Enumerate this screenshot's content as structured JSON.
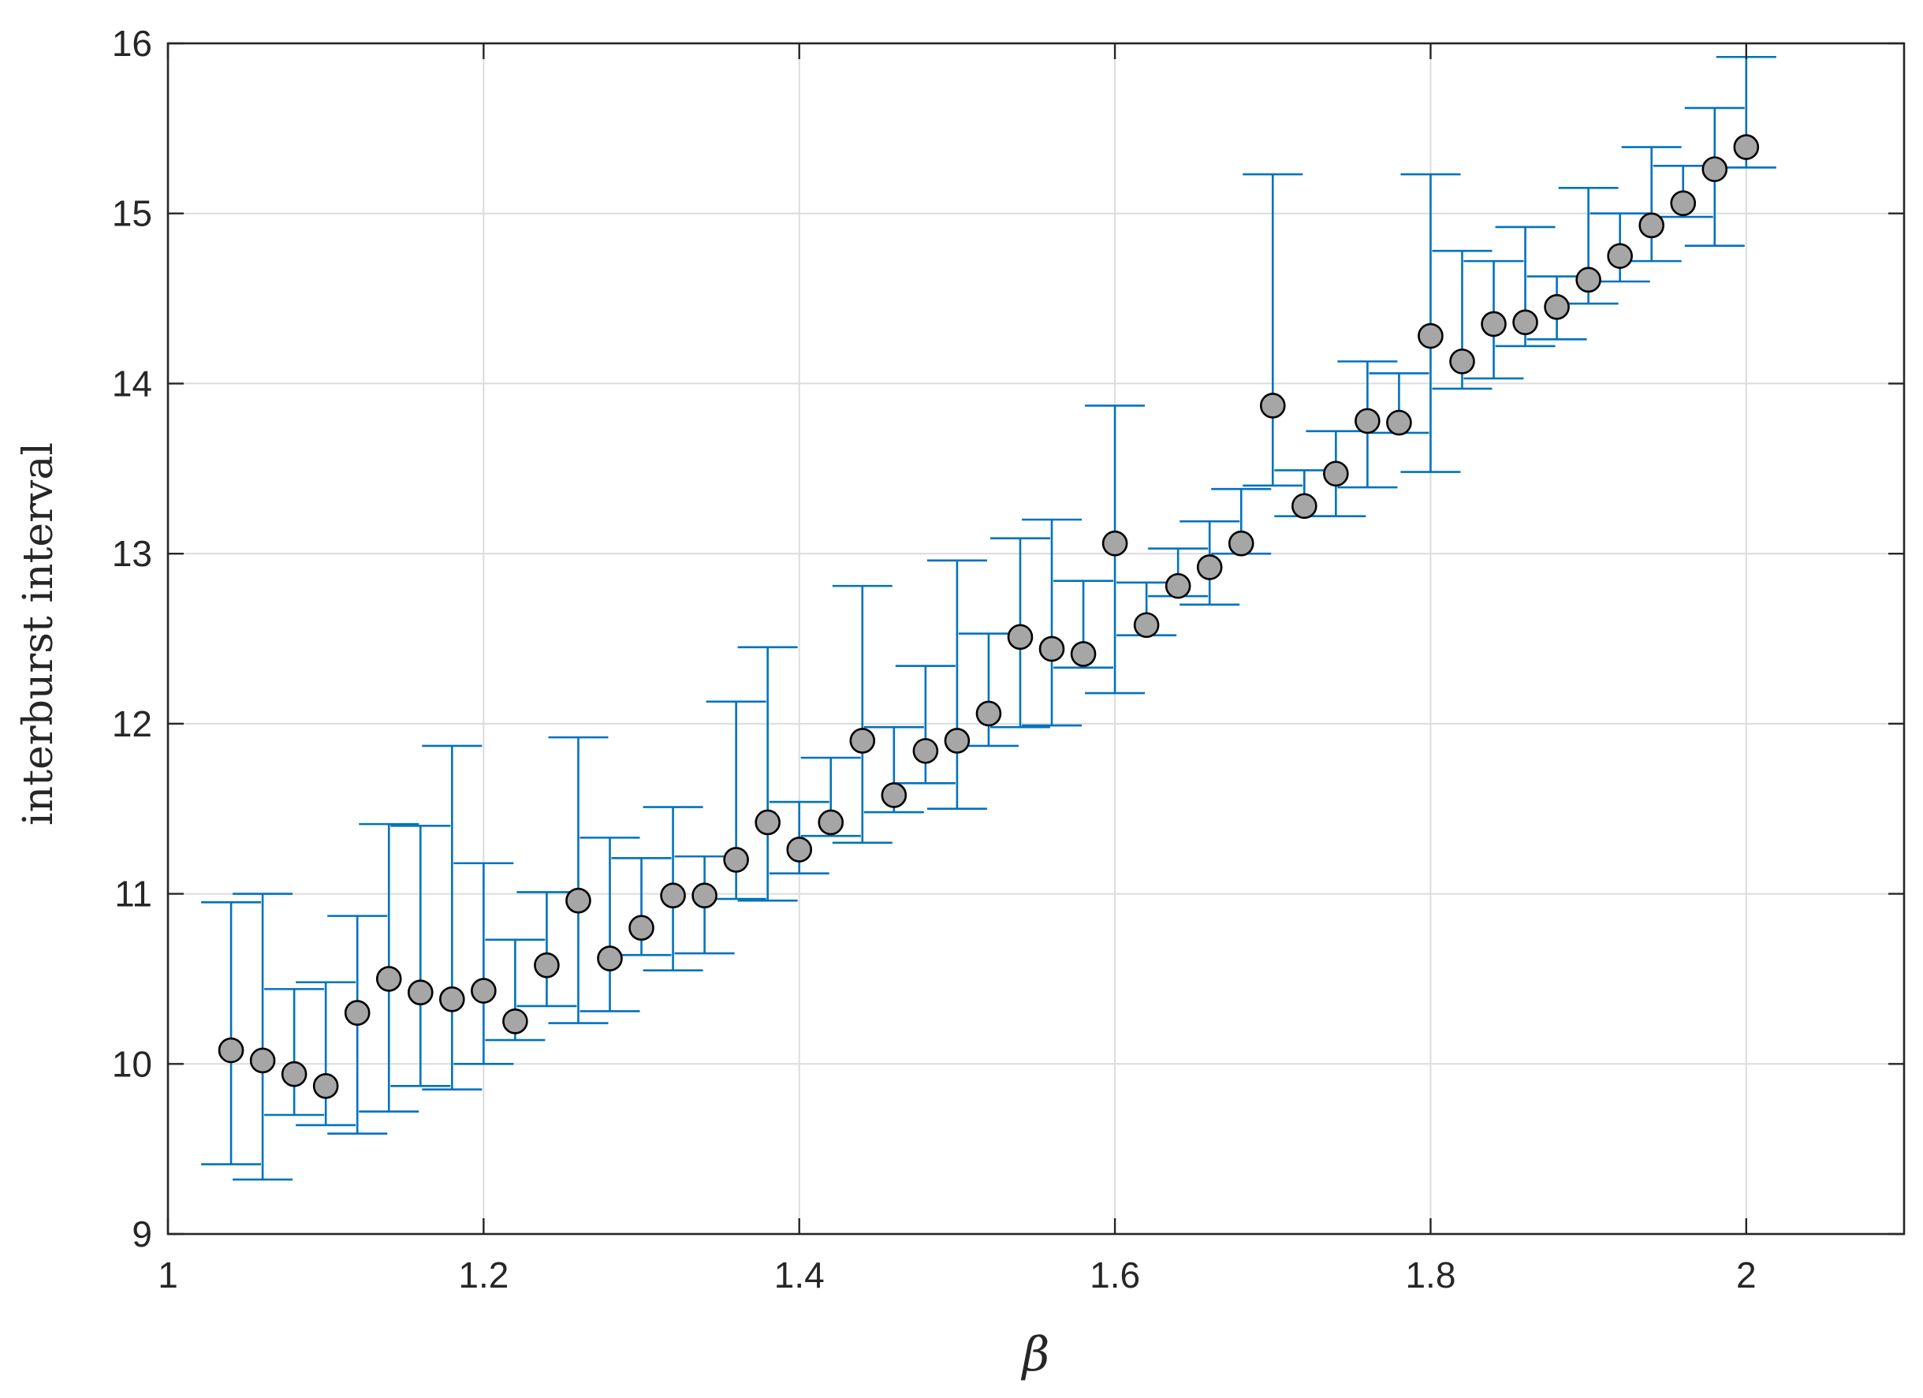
{
  "chart_data": {
    "type": "scatter",
    "title": "",
    "xlabel": "β",
    "ylabel": "interburst interval",
    "xlim": [
      1,
      2.1
    ],
    "ylim": [
      9,
      16
    ],
    "xticks": [
      1,
      1.2,
      1.4,
      1.6,
      1.8,
      2
    ],
    "xtick_labels": [
      "1",
      "1.2",
      "1.4",
      "1.6",
      "1.8",
      "2"
    ],
    "yticks": [
      9,
      10,
      11,
      12,
      13,
      14,
      15,
      16
    ],
    "ytick_labels": [
      "9",
      "10",
      "11",
      "12",
      "13",
      "14",
      "15",
      "16"
    ],
    "grid": true,
    "colors": {
      "errorbar": "#0072BD",
      "marker_fill": "#A6A6A6",
      "marker_edge": "#000000",
      "grid": "#DCDCDC",
      "axis": "#262626"
    },
    "series": [
      {
        "x": [
          1.04,
          1.06,
          1.08,
          1.1,
          1.12,
          1.14,
          1.16,
          1.18,
          1.2,
          1.22,
          1.24,
          1.26,
          1.28,
          1.3,
          1.32,
          1.34,
          1.36,
          1.38,
          1.4,
          1.42,
          1.44,
          1.46,
          1.48,
          1.5,
          1.52,
          1.54,
          1.56,
          1.58,
          1.6,
          1.62,
          1.64,
          1.66,
          1.68,
          1.7,
          1.72,
          1.74,
          1.76,
          1.78,
          1.8,
          1.82,
          1.84,
          1.86,
          1.88,
          1.9,
          1.92,
          1.94,
          1.96,
          1.98,
          2.0
        ],
        "y": [
          10.08,
          10.02,
          9.94,
          9.87,
          10.3,
          10.5,
          10.42,
          10.38,
          10.43,
          10.25,
          10.58,
          10.96,
          10.62,
          10.8,
          10.99,
          10.99,
          11.2,
          11.42,
          11.26,
          11.42,
          11.9,
          11.58,
          11.84,
          11.9,
          12.06,
          12.51,
          12.44,
          12.41,
          13.06,
          12.58,
          12.81,
          12.92,
          13.06,
          13.87,
          13.28,
          13.47,
          13.78,
          13.77,
          14.28,
          14.13,
          14.35,
          14.36,
          14.45,
          14.61,
          14.75,
          14.93,
          15.06,
          15.26,
          15.39
        ],
        "ylow": [
          9.41,
          9.32,
          9.7,
          9.64,
          9.59,
          9.72,
          9.87,
          9.85,
          10.0,
          10.14,
          10.34,
          10.24,
          10.31,
          10.64,
          10.55,
          10.65,
          10.97,
          10.96,
          11.12,
          11.34,
          11.3,
          11.48,
          11.65,
          11.5,
          11.87,
          11.98,
          11.99,
          12.33,
          12.18,
          12.52,
          12.75,
          12.7,
          13.0,
          13.4,
          13.22,
          13.22,
          13.39,
          13.71,
          13.48,
          13.97,
          14.03,
          14.22,
          14.26,
          14.47,
          14.6,
          14.72,
          14.98,
          14.81,
          15.27
        ],
        "yhigh": [
          10.95,
          11.0,
          10.44,
          10.48,
          10.87,
          11.41,
          11.4,
          11.87,
          11.18,
          10.73,
          11.01,
          11.92,
          11.33,
          11.21,
          11.51,
          11.22,
          12.13,
          12.45,
          11.54,
          11.8,
          12.81,
          11.98,
          12.34,
          12.96,
          12.53,
          13.09,
          13.2,
          12.84,
          13.87,
          12.83,
          13.03,
          13.19,
          13.38,
          15.23,
          13.49,
          13.72,
          14.13,
          14.06,
          15.23,
          14.78,
          14.72,
          14.92,
          14.63,
          15.15,
          15.0,
          15.39,
          15.28,
          15.62,
          15.92
        ]
      }
    ]
  }
}
